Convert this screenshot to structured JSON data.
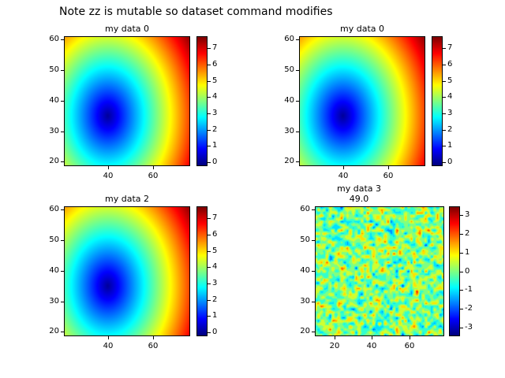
{
  "figure": {
    "title": "Note zz is mutable so dataset command modifies",
    "background": "#ffffff"
  },
  "chart_data": [
    {
      "type": "heatmap",
      "title": "my data 0",
      "colormap": "jet",
      "xlim": [
        21,
        76
      ],
      "ylim": [
        18.8,
        60.8
      ],
      "xticks": [
        40,
        60
      ],
      "yticks": [
        20,
        30,
        40,
        50,
        60
      ],
      "colorbar": {
        "ticks": [
          0,
          1,
          2,
          3,
          4,
          5,
          6,
          7
        ],
        "vmin": -0.2,
        "vmax": 7.7
      },
      "field": {
        "kind": "radial",
        "center": [
          40,
          35
        ],
        "divisor": 5.83,
        "description": "value = euclidean distance from center / divisor; dark blue minimum at center, red maximum at upper-right corner"
      }
    },
    {
      "type": "heatmap",
      "title": "my data 0",
      "colormap": "jet",
      "xlim": [
        21,
        76
      ],
      "ylim": [
        18.8,
        60.8
      ],
      "xticks": [
        40,
        60
      ],
      "yticks": [
        20,
        30,
        40,
        50,
        60
      ],
      "colorbar": {
        "ticks": [
          0,
          1,
          2,
          3,
          4,
          5,
          6,
          7
        ],
        "vmin": -0.2,
        "vmax": 7.7
      },
      "field": {
        "kind": "radial",
        "center": [
          40,
          35
        ],
        "divisor": 5.83,
        "description": "value = euclidean distance from center / divisor; dark blue minimum at center, red maximum at upper-right corner"
      }
    },
    {
      "type": "heatmap",
      "title": "my data 2",
      "colormap": "jet",
      "xlim": [
        21,
        76
      ],
      "ylim": [
        18.8,
        60.8
      ],
      "xticks": [
        40,
        60
      ],
      "yticks": [
        20,
        30,
        40,
        50,
        60
      ],
      "colorbar": {
        "ticks": [
          0,
          1,
          2,
          3,
          4,
          5,
          6,
          7
        ],
        "vmin": -0.2,
        "vmax": 7.7
      },
      "field": {
        "kind": "radial",
        "center": [
          40,
          35
        ],
        "divisor": 5.83,
        "description": "value = euclidean distance from center / divisor; dark blue minimum at center, red maximum at upper-right corner"
      }
    },
    {
      "type": "heatmap",
      "title": "my data 3",
      "subtitle": "49.0",
      "colormap": "jet",
      "xlim": [
        10,
        78
      ],
      "ylim": [
        18.8,
        60.8
      ],
      "xticks": [
        20,
        40,
        60
      ],
      "yticks": [
        20,
        30,
        40,
        50,
        60
      ],
      "colorbar": {
        "ticks": [
          -3,
          -2,
          -1,
          0,
          1,
          2,
          3
        ],
        "vmin": -3.4,
        "vmax": 3.4
      },
      "field": {
        "kind": "gaussian-noise",
        "seed": 42,
        "grid": 45,
        "sigma": 0.85,
        "levels": 13,
        "description": "random gaussian field contoured with jet colormap; mostly green near 0 with yellow/orange speckles and sparse blue dots"
      }
    }
  ]
}
